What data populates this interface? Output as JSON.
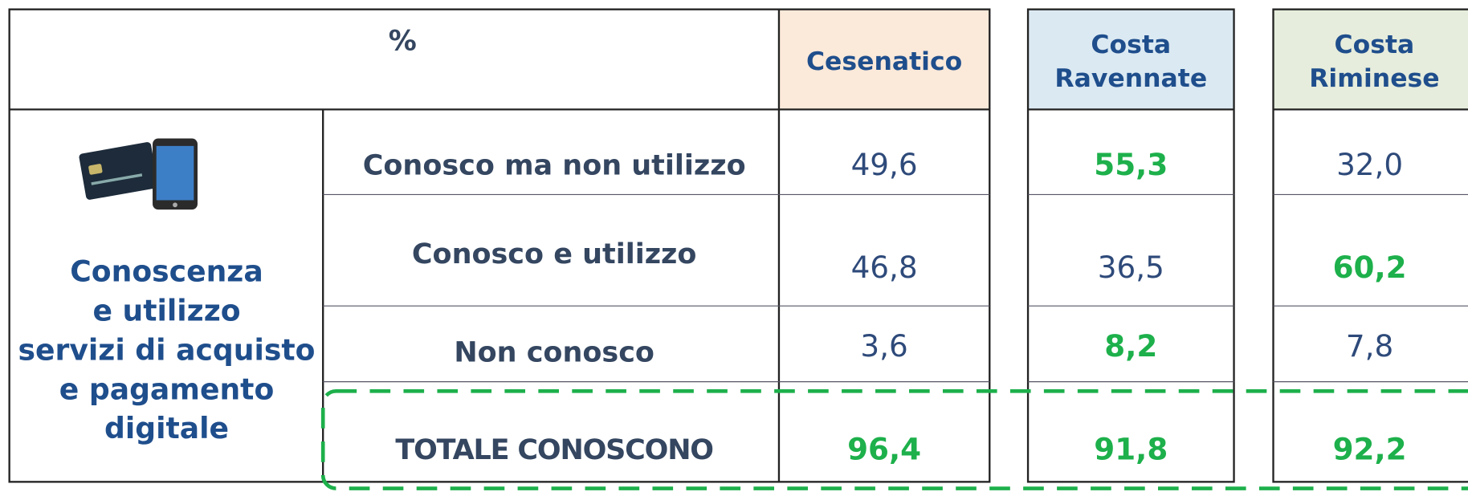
{
  "table": {
    "corner": "%",
    "columns": [
      {
        "lines": [
          "Cesenatico"
        ],
        "fill": "#fbe9d9"
      },
      {
        "lines": [
          "Costa",
          "Ravennate"
        ],
        "fill": "#dbe9f2"
      },
      {
        "lines": [
          "Costa",
          "Riminese"
        ],
        "fill": "#e6eddc"
      }
    ],
    "section_label": [
      "Conoscenza",
      "e utilizzo",
      "servizi di acquisto",
      "e pagamento",
      "digitale"
    ],
    "rows": [
      {
        "label": "Conosco ma non utilizzo",
        "cells": [
          "49,6",
          "55,3",
          "32,0"
        ],
        "highlight": [
          false,
          true,
          false
        ]
      },
      {
        "label": "Conosco e utilizzo",
        "cells": [
          "46,8",
          "36,5",
          "60,2"
        ],
        "highlight": [
          false,
          false,
          true
        ]
      },
      {
        "label": "Non conosco",
        "cells": [
          "3,6",
          "8,2",
          "7,8"
        ],
        "highlight": [
          false,
          true,
          false
        ]
      },
      {
        "label": "TOTALE CONOSCONO",
        "cells": [
          "96,4",
          "91,8",
          "92,2"
        ],
        "highlight": [
          true,
          true,
          true
        ]
      }
    ]
  }
}
